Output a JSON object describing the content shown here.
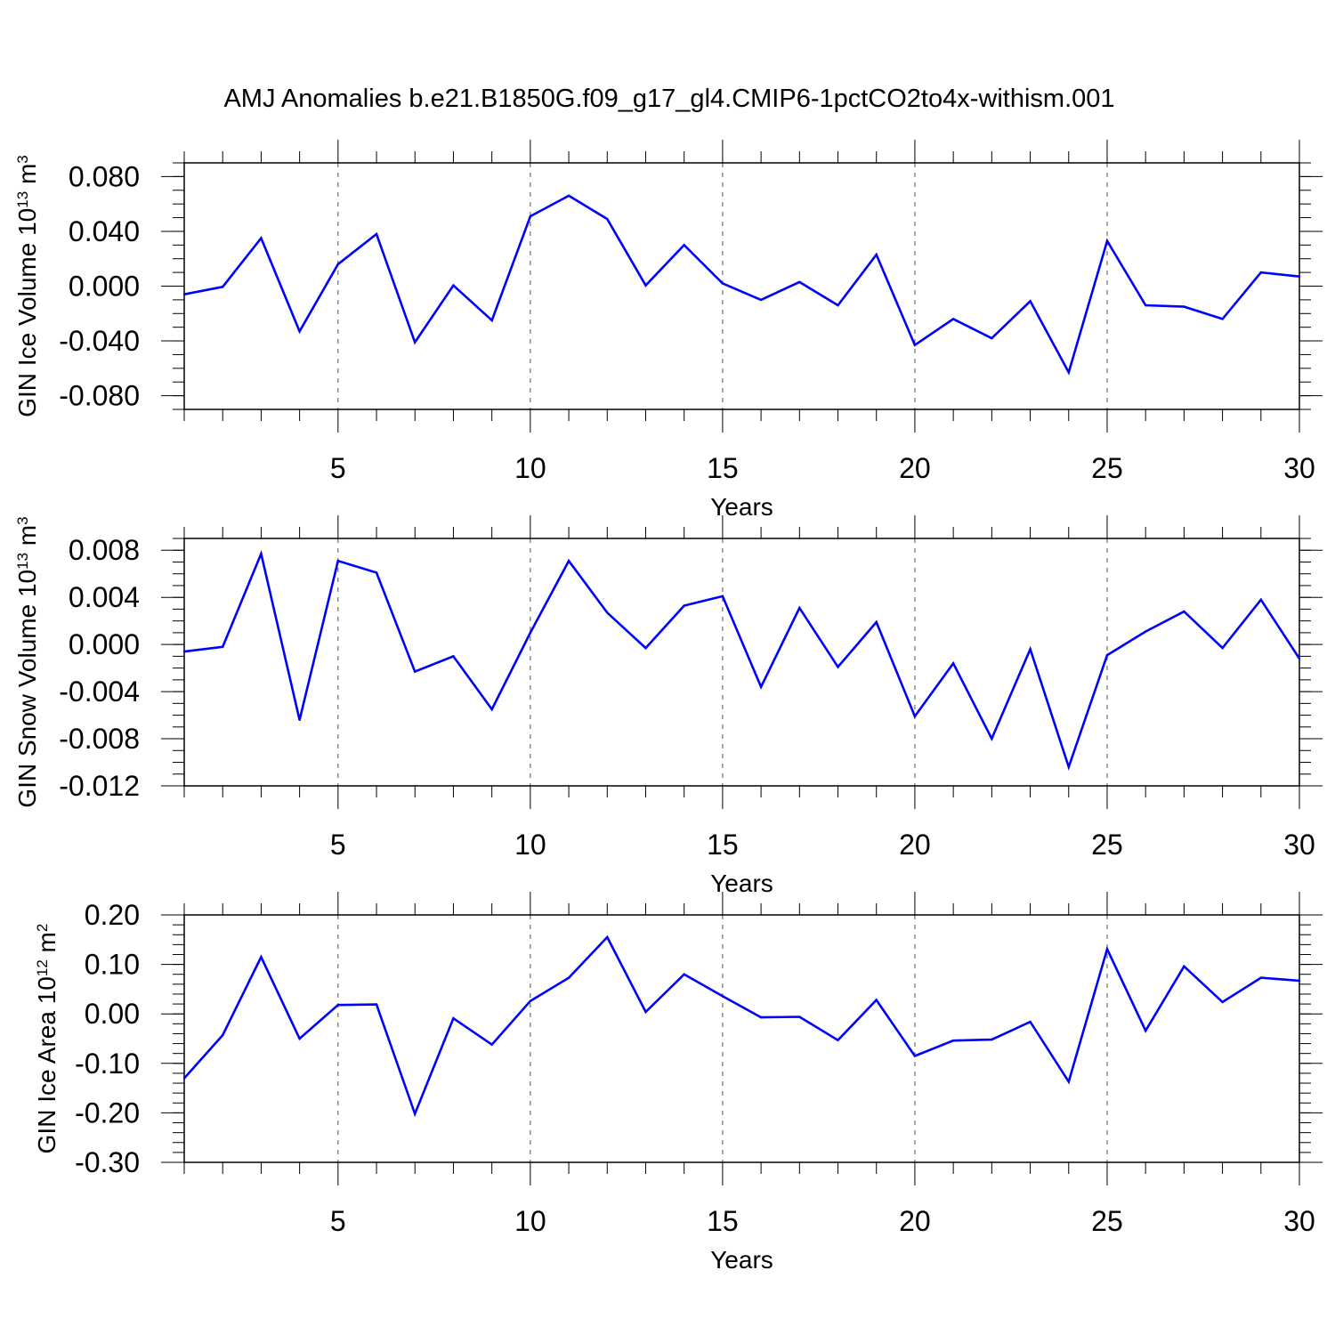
{
  "title": "AMJ Anomalies b.e21.B1850G.f09_g17_gl4.CMIP6-1pctCO2to4x-withism.001",
  "colors": {
    "line": "#0000ff",
    "axes": "#000000",
    "grid": "#555555"
  },
  "chart_data": [
    {
      "type": "line",
      "name": "ice-volume",
      "xlabel": "Years",
      "ylabel": "GIN Ice Volume",
      "ylabel_scale": "10",
      "ylabel_exp": "13",
      "ylabel_unit": "m",
      "ylabel_unit_exp": "3",
      "xlim": [
        1,
        30
      ],
      "ylim": [
        -0.09,
        0.09
      ],
      "xticks": [
        5,
        10,
        15,
        20,
        25,
        30
      ],
      "xtick_labels": [
        "5",
        "10",
        "15",
        "20",
        "25",
        "30"
      ],
      "yticks": [
        -0.08,
        -0.04,
        0.0,
        0.04,
        0.08
      ],
      "ytick_labels": [
        "-0.080",
        "-0.040",
        "0.000",
        "0.040",
        "0.080"
      ],
      "yminor_step": 0.01,
      "vgrid": [
        5,
        10,
        15,
        20,
        25
      ],
      "x": [
        1,
        2,
        3,
        4,
        5,
        6,
        7,
        8,
        9,
        10,
        11,
        12,
        13,
        14,
        15,
        16,
        17,
        18,
        19,
        20,
        21,
        22,
        23,
        24,
        25,
        26,
        27,
        28,
        29,
        30
      ],
      "values": [
        -0.006,
        -0.0005,
        0.035,
        -0.033,
        0.016,
        0.038,
        -0.041,
        0.0005,
        -0.025,
        0.051,
        0.066,
        0.049,
        0.0005,
        0.03,
        0.002,
        -0.01,
        0.003,
        -0.014,
        0.023,
        -0.043,
        -0.024,
        -0.038,
        -0.011,
        -0.063,
        0.033,
        -0.014,
        -0.015,
        -0.024,
        0.01,
        0.007
      ]
    },
    {
      "type": "line",
      "name": "snow-volume",
      "xlabel": "Years",
      "ylabel": "GIN Snow Volume",
      "ylabel_scale": "10",
      "ylabel_exp": "13",
      "ylabel_unit": "m",
      "ylabel_unit_exp": "3",
      "xlim": [
        1,
        30
      ],
      "ylim": [
        -0.012,
        0.009
      ],
      "xticks": [
        5,
        10,
        15,
        20,
        25,
        30
      ],
      "xtick_labels": [
        "5",
        "10",
        "15",
        "20",
        "25",
        "30"
      ],
      "yticks": [
        -0.012,
        -0.008,
        -0.004,
        0.0,
        0.004,
        0.008
      ],
      "ytick_labels": [
        "-0.012",
        "-0.008",
        "-0.004",
        "0.000",
        "0.004",
        "0.008"
      ],
      "yminor_step": 0.001,
      "vgrid": [
        5,
        10,
        15,
        20,
        25
      ],
      "x": [
        1,
        2,
        3,
        4,
        5,
        6,
        7,
        8,
        9,
        10,
        11,
        12,
        13,
        14,
        15,
        16,
        17,
        18,
        19,
        20,
        21,
        22,
        23,
        24,
        25,
        26,
        27,
        28,
        29,
        30
      ],
      "values": [
        -0.0006,
        -0.0002,
        0.0077,
        -0.0064,
        0.0071,
        0.0061,
        -0.0023,
        -0.001,
        -0.0055,
        0.001,
        0.0071,
        0.0027,
        -0.0003,
        0.0033,
        0.0041,
        -0.0036,
        0.0031,
        -0.0019,
        0.0019,
        -0.0061,
        -0.0016,
        -0.008,
        -0.0004,
        -0.0104,
        -0.0009,
        0.0011,
        0.0028,
        -0.0003,
        0.0038,
        -0.0012
      ]
    },
    {
      "type": "line",
      "name": "ice-area",
      "xlabel": "Years",
      "ylabel": "GIN Ice Area",
      "ylabel_scale": "10",
      "ylabel_exp": "12",
      "ylabel_unit": "m",
      "ylabel_unit_exp": "2",
      "xlim": [
        1,
        30
      ],
      "ylim": [
        -0.3,
        0.2
      ],
      "xticks": [
        5,
        10,
        15,
        20,
        25,
        30
      ],
      "xtick_labels": [
        "5",
        "10",
        "15",
        "20",
        "25",
        "30"
      ],
      "yticks": [
        -0.3,
        -0.2,
        -0.1,
        0.0,
        0.1,
        0.2
      ],
      "ytick_labels": [
        "-0.30",
        "-0.20",
        "-0.10",
        "0.00",
        "0.10",
        "0.20"
      ],
      "yminor_step": 0.02,
      "vgrid": [
        5,
        10,
        15,
        20,
        25
      ],
      "x": [
        1,
        2,
        3,
        4,
        5,
        6,
        7,
        8,
        9,
        10,
        11,
        12,
        13,
        14,
        15,
        16,
        17,
        18,
        19,
        20,
        21,
        22,
        23,
        24,
        25,
        26,
        27,
        28,
        29,
        30
      ],
      "values": [
        -0.13,
        -0.043,
        0.115,
        -0.05,
        0.018,
        0.019,
        -0.202,
        -0.009,
        -0.062,
        0.026,
        0.073,
        0.155,
        0.004,
        0.08,
        0.036,
        -0.007,
        -0.006,
        -0.053,
        0.028,
        -0.085,
        -0.054,
        -0.052,
        -0.016,
        -0.137,
        0.131,
        -0.034,
        0.096,
        0.024,
        0.073,
        0.067
      ]
    }
  ]
}
